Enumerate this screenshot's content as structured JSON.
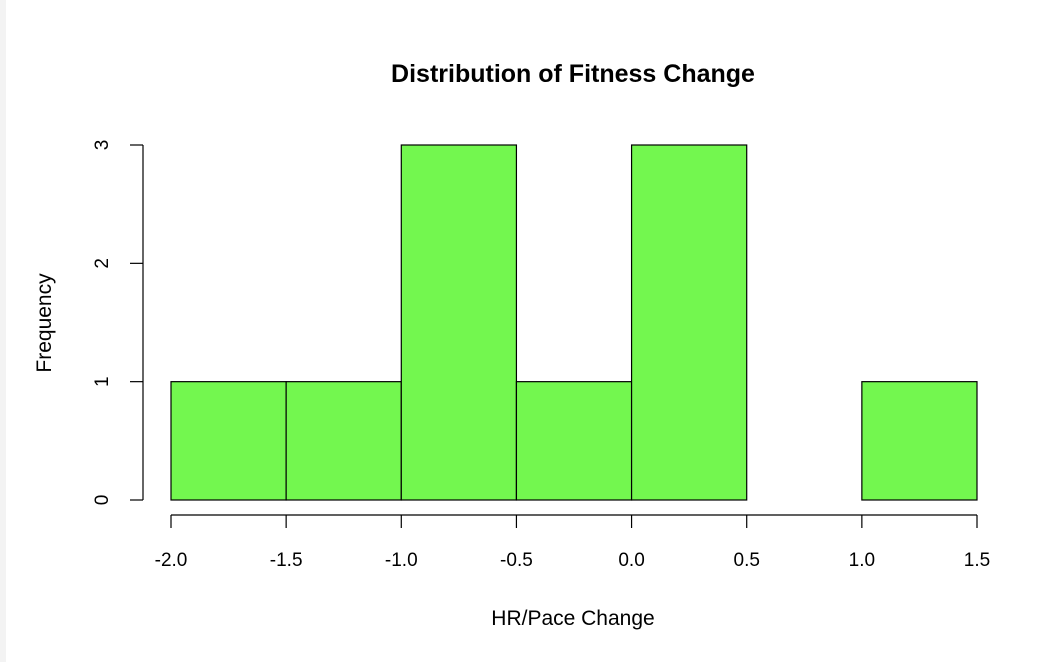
{
  "chart_data": {
    "type": "histogram",
    "title": "Distribution of Fitness Change",
    "xlabel": "HR/Pace Change",
    "ylabel": "Frequency",
    "bins": [
      {
        "start": -2.0,
        "end": -1.5,
        "count": 1
      },
      {
        "start": -1.5,
        "end": -1.0,
        "count": 1
      },
      {
        "start": -1.0,
        "end": -0.5,
        "count": 3
      },
      {
        "start": -0.5,
        "end": 0.0,
        "count": 1
      },
      {
        "start": 0.0,
        "end": 0.5,
        "count": 3
      },
      {
        "start": 0.5,
        "end": 1.0,
        "count": 0
      },
      {
        "start": 1.0,
        "end": 1.5,
        "count": 1
      }
    ],
    "x_ticks": [
      "-2.0",
      "-1.5",
      "-1.0",
      "-0.5",
      "0.0",
      "0.5",
      "1.0",
      "1.5"
    ],
    "y_ticks": [
      "0",
      "1",
      "2",
      "3"
    ],
    "xlim": [
      -2.0,
      1.5
    ],
    "ylim": [
      0,
      3
    ],
    "bar_color": "#73f74f",
    "grid": false,
    "legend": "none"
  }
}
